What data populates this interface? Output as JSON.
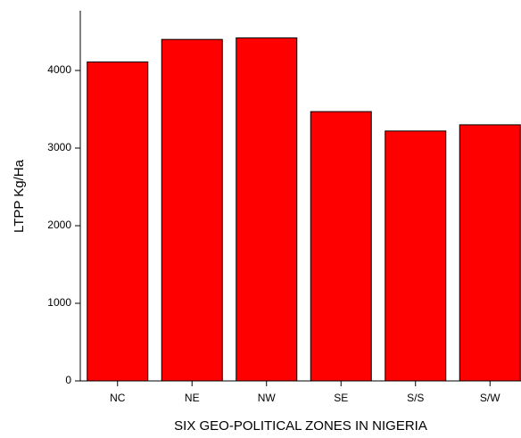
{
  "chart_data": {
    "type": "bar",
    "categories": [
      "NC",
      "NE",
      "NW",
      "SE",
      "S/S",
      "S/W"
    ],
    "values": [
      4110,
      4400,
      4420,
      3470,
      3220,
      3300
    ],
    "color": "#ff0000",
    "xlabel": "SIX GEO-POLITICAL ZONES IN NIGERIA",
    "ylabel": "LTPP Kg/Ha",
    "ylim": [
      0,
      4770
    ],
    "yticks": [
      0,
      1000,
      2000,
      3000,
      4000
    ],
    "grid": false
  }
}
